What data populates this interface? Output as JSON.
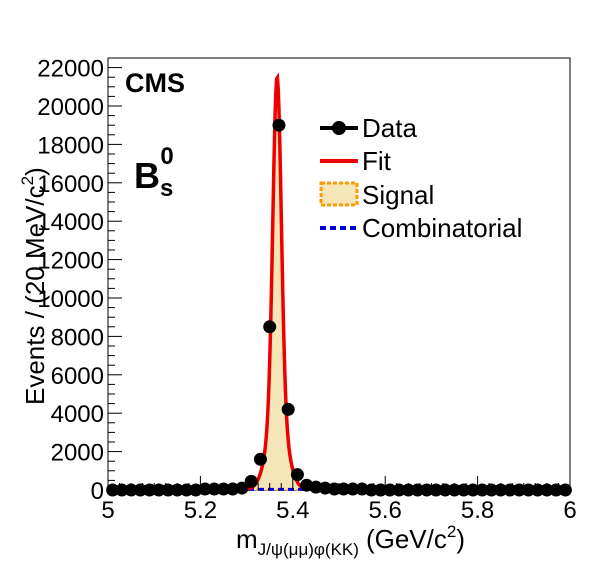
{
  "chart_data": {
    "type": "scatter",
    "experiment_label": "CMS",
    "particle": {
      "symbol": "B",
      "subscript": "s",
      "superscript": "0"
    },
    "xlabel": {
      "main": "m",
      "subscript": "J/ψ(μμ)φ(KK)",
      "unit": "(GeV/c",
      "unit_sup": "2",
      "unit_end": ")"
    },
    "ylabel": {
      "main": "Events / (20 MeV/c",
      "sup": "2",
      "end": ")"
    },
    "xlim": [
      5,
      6
    ],
    "ylim": [
      0,
      22500
    ],
    "x_ticks": [
      5,
      5.2,
      5.4,
      5.6,
      5.8,
      6
    ],
    "x_tick_labels": [
      "5",
      "5.2",
      "5.4",
      "5.6",
      "5.8",
      "6"
    ],
    "y_ticks": [
      0,
      2000,
      4000,
      6000,
      8000,
      10000,
      12000,
      14000,
      16000,
      18000,
      20000,
      22000
    ],
    "y_tick_labels": [
      "0",
      "2000",
      "4000",
      "6000",
      "8000",
      "10000",
      "12000",
      "14000",
      "16000",
      "18000",
      "20000",
      "22000"
    ],
    "legend_position": "top-right",
    "legend": [
      {
        "key": "data",
        "label": "Data"
      },
      {
        "key": "fit",
        "label": "Fit"
      },
      {
        "key": "signal",
        "label": "Signal"
      },
      {
        "key": "combinatorial",
        "label": "Combinatorial"
      }
    ],
    "colors": {
      "data": "#000000",
      "fit": "#ee0000",
      "signal_fill": "#f5e6b8",
      "signal_line": "#ff9900",
      "combinatorial": "#0000dd"
    },
    "data_points": {
      "x": [
        5.01,
        5.03,
        5.05,
        5.07,
        5.09,
        5.11,
        5.13,
        5.15,
        5.17,
        5.19,
        5.21,
        5.23,
        5.25,
        5.27,
        5.29,
        5.31,
        5.33,
        5.35,
        5.37,
        5.39,
        5.41,
        5.43,
        5.45,
        5.47,
        5.49,
        5.51,
        5.53,
        5.55,
        5.57,
        5.59,
        5.61,
        5.63,
        5.65,
        5.67,
        5.69,
        5.71,
        5.73,
        5.75,
        5.77,
        5.79,
        5.81,
        5.83,
        5.85,
        5.87,
        5.89,
        5.91,
        5.93,
        5.95,
        5.97,
        5.99
      ],
      "y": [
        0,
        0,
        0,
        0,
        0,
        0,
        0,
        0,
        0,
        0,
        50,
        50,
        50,
        50,
        100,
        450,
        1600,
        8500,
        19000,
        4200,
        800,
        250,
        150,
        100,
        50,
        50,
        50,
        50,
        0,
        0,
        0,
        0,
        0,
        0,
        0,
        0,
        0,
        0,
        0,
        0,
        0,
        0,
        0,
        0,
        0,
        0,
        0,
        0,
        0,
        0
      ]
    },
    "fit_model": {
      "peak_mean": 5.366,
      "peak_amplitude": 21500,
      "core_sigma": 0.009,
      "tail_sigma": 0.02,
      "core_fraction": 0.8,
      "background_level": 30
    }
  }
}
